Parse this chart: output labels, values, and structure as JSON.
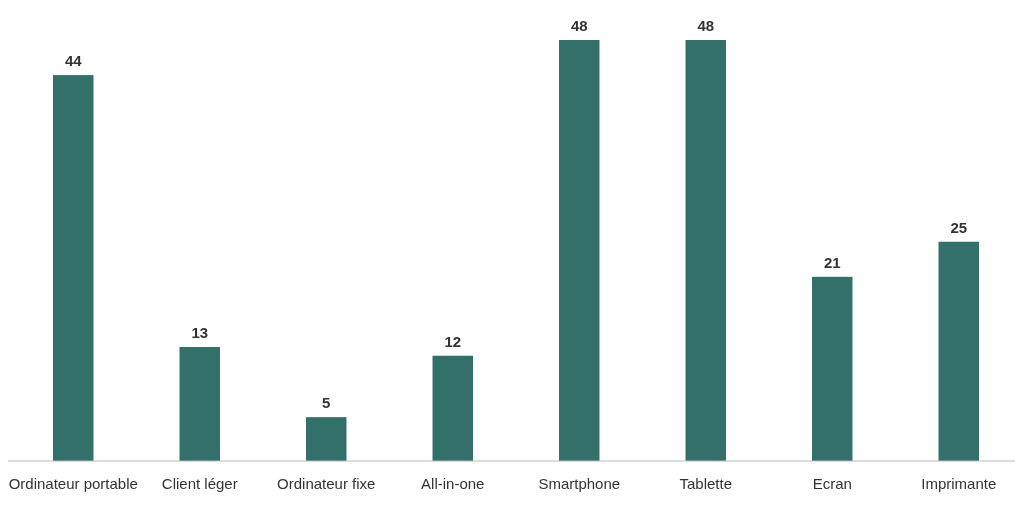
{
  "chart_data": {
    "type": "bar",
    "categories": [
      "Ordinateur portable",
      "Client léger",
      "Ordinateur fixe",
      "All-in-one",
      "Smartphone",
      "Tablette",
      "Ecran",
      "Imprimante"
    ],
    "values": [
      44,
      13,
      5,
      12,
      48,
      48,
      21,
      25
    ],
    "color": "#33706a",
    "data_labels": true
  }
}
